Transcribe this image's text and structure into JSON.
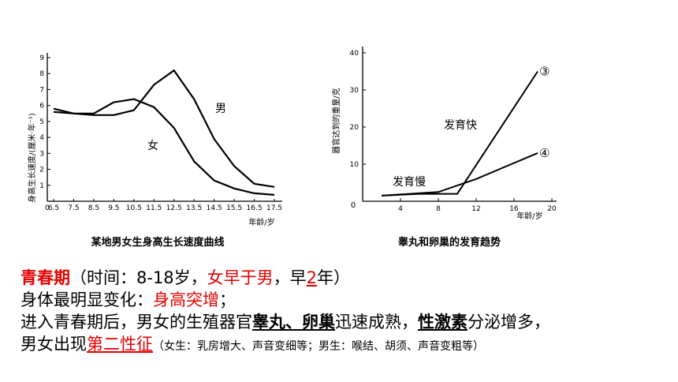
{
  "left_chart": {
    "caption": "某地男女生身高生长速度曲线",
    "ylabel": "身高生长速度/(厘米·年⁻¹)",
    "xlabel": "年龄/岁",
    "x_ticks": [
      "6.5",
      "7.5",
      "8.5",
      "9.5",
      "10.5",
      "11.5",
      "12.5",
      "13.5",
      "14.5",
      "15.5",
      "16.5",
      "17.5"
    ],
    "y_ticks": [
      "1",
      "2",
      "3",
      "4",
      "5",
      "6",
      "7",
      "8",
      "9"
    ],
    "origin_label": "0",
    "label_male": "男",
    "label_female": "女"
  },
  "right_chart": {
    "caption": "睾丸和卵巢的发育趋势",
    "ylabel": "器官达到的重量/克",
    "xlabel": "年龄/岁",
    "x_ticks": [
      "4",
      "8",
      "12",
      "16",
      "20"
    ],
    "y_ticks": [
      "10",
      "20",
      "30",
      "40"
    ],
    "origin_label": "0",
    "marker_3": "③",
    "marker_4": "④",
    "label_fast": "发育快",
    "label_slow": "发育慢"
  },
  "chart_data": [
    {
      "type": "line",
      "title": "某地男女生身高生长速度曲线",
      "xlabel": "年龄/岁",
      "ylabel": "身高生长速度/(厘米·年⁻¹)",
      "xlim": [
        6.5,
        17.5
      ],
      "ylim": [
        0,
        9
      ],
      "series": [
        {
          "name": "男",
          "x": [
            6.5,
            7.5,
            8.5,
            9.5,
            10.5,
            11.5,
            12.5,
            13.5,
            14.5,
            15.5,
            16.5,
            17.5
          ],
          "y": [
            5.8,
            5.5,
            5.4,
            5.4,
            5.7,
            7.3,
            8.2,
            6.4,
            3.9,
            2.2,
            1.1,
            0.9
          ]
        },
        {
          "name": "女",
          "x": [
            6.5,
            7.5,
            8.5,
            9.5,
            10.5,
            11.5,
            12.5,
            13.5,
            14.5,
            15.5,
            16.5,
            17.5
          ],
          "y": [
            5.6,
            5.5,
            5.5,
            6.2,
            6.4,
            5.9,
            4.6,
            2.5,
            1.3,
            0.8,
            0.5,
            0.4
          ]
        }
      ]
    },
    {
      "type": "line",
      "title": "睾丸和卵巢的发育趋势",
      "xlabel": "年龄/岁",
      "ylabel": "器官达到的重量/克",
      "xlim": [
        0,
        20
      ],
      "ylim": [
        0,
        40
      ],
      "series": [
        {
          "name": "③",
          "x": [
            2,
            6,
            10,
            18.5
          ],
          "y": [
            1.5,
            2,
            2,
            35
          ]
        },
        {
          "name": "④",
          "x": [
            2,
            8,
            12,
            18.5
          ],
          "y": [
            1.5,
            2.5,
            6,
            13
          ]
        }
      ]
    }
  ],
  "text": {
    "l1_a": "青春期",
    "l1_b": "（时间：8-18岁，",
    "l1_c": "女早于男",
    "l1_d": "，早",
    "l1_e": "2",
    "l1_f": "年）",
    "l2_a": "身体最明显变化：",
    "l2_b": "身高突增",
    "l2_c": "；",
    "l3_a": "进入青春期后，男女的生殖器官",
    "l3_b": "睾丸、卵巢",
    "l3_c": "迅速成熟，",
    "l3_d": "性激素",
    "l3_e": "分泌增多，",
    "l4_a": "男女出现",
    "l4_b": "第二性征",
    "l4_c": "（女生：乳房增大、声音变细等；男生：喉结、胡须、声音变粗等）"
  },
  "colors": {
    "red": "#e30000",
    "ink": "#000000"
  }
}
